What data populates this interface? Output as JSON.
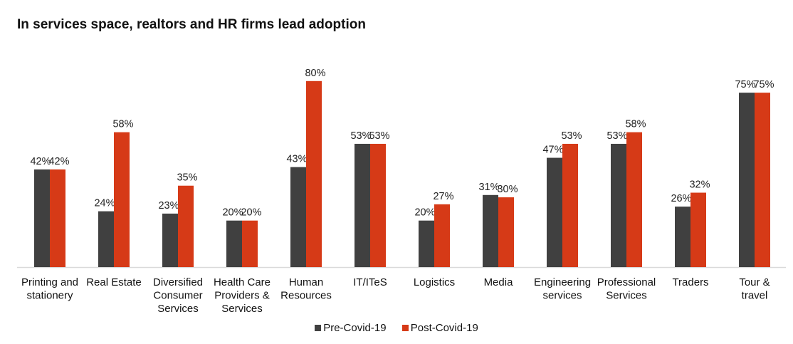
{
  "chart_data": {
    "type": "bar",
    "title": "In services space, realtors and HR firms lead adoption",
    "xlabel": "",
    "ylabel": "",
    "ylim": [
      0,
      100
    ],
    "grid": false,
    "legend_position": "bottom",
    "categories": [
      [
        "Printing and",
        "stationery"
      ],
      [
        "Real Estate"
      ],
      [
        "Diversified",
        "Consumer",
        "Services"
      ],
      [
        "Health Care",
        "Providers &",
        "Services"
      ],
      [
        "Human",
        "Resources"
      ],
      [
        "IT/ITeS"
      ],
      [
        "Logistics"
      ],
      [
        "Media"
      ],
      [
        "Engineering",
        "services"
      ],
      [
        "Professional",
        "Services"
      ],
      [
        "Traders"
      ],
      [
        "Tour &",
        "travel"
      ]
    ],
    "series": [
      {
        "name": "Pre-Covid-19",
        "color": "#404040",
        "values": [
          42,
          24,
          23,
          20,
          43,
          53,
          20,
          31,
          47,
          53,
          26,
          75
        ]
      },
      {
        "name": "Post-Covid-19",
        "color": "#d63a17",
        "values": [
          42,
          58,
          35,
          20,
          80,
          53,
          27,
          30,
          53,
          58,
          32,
          75
        ]
      }
    ],
    "value_suffix": "%"
  },
  "axis_color": "#d9d9d9"
}
